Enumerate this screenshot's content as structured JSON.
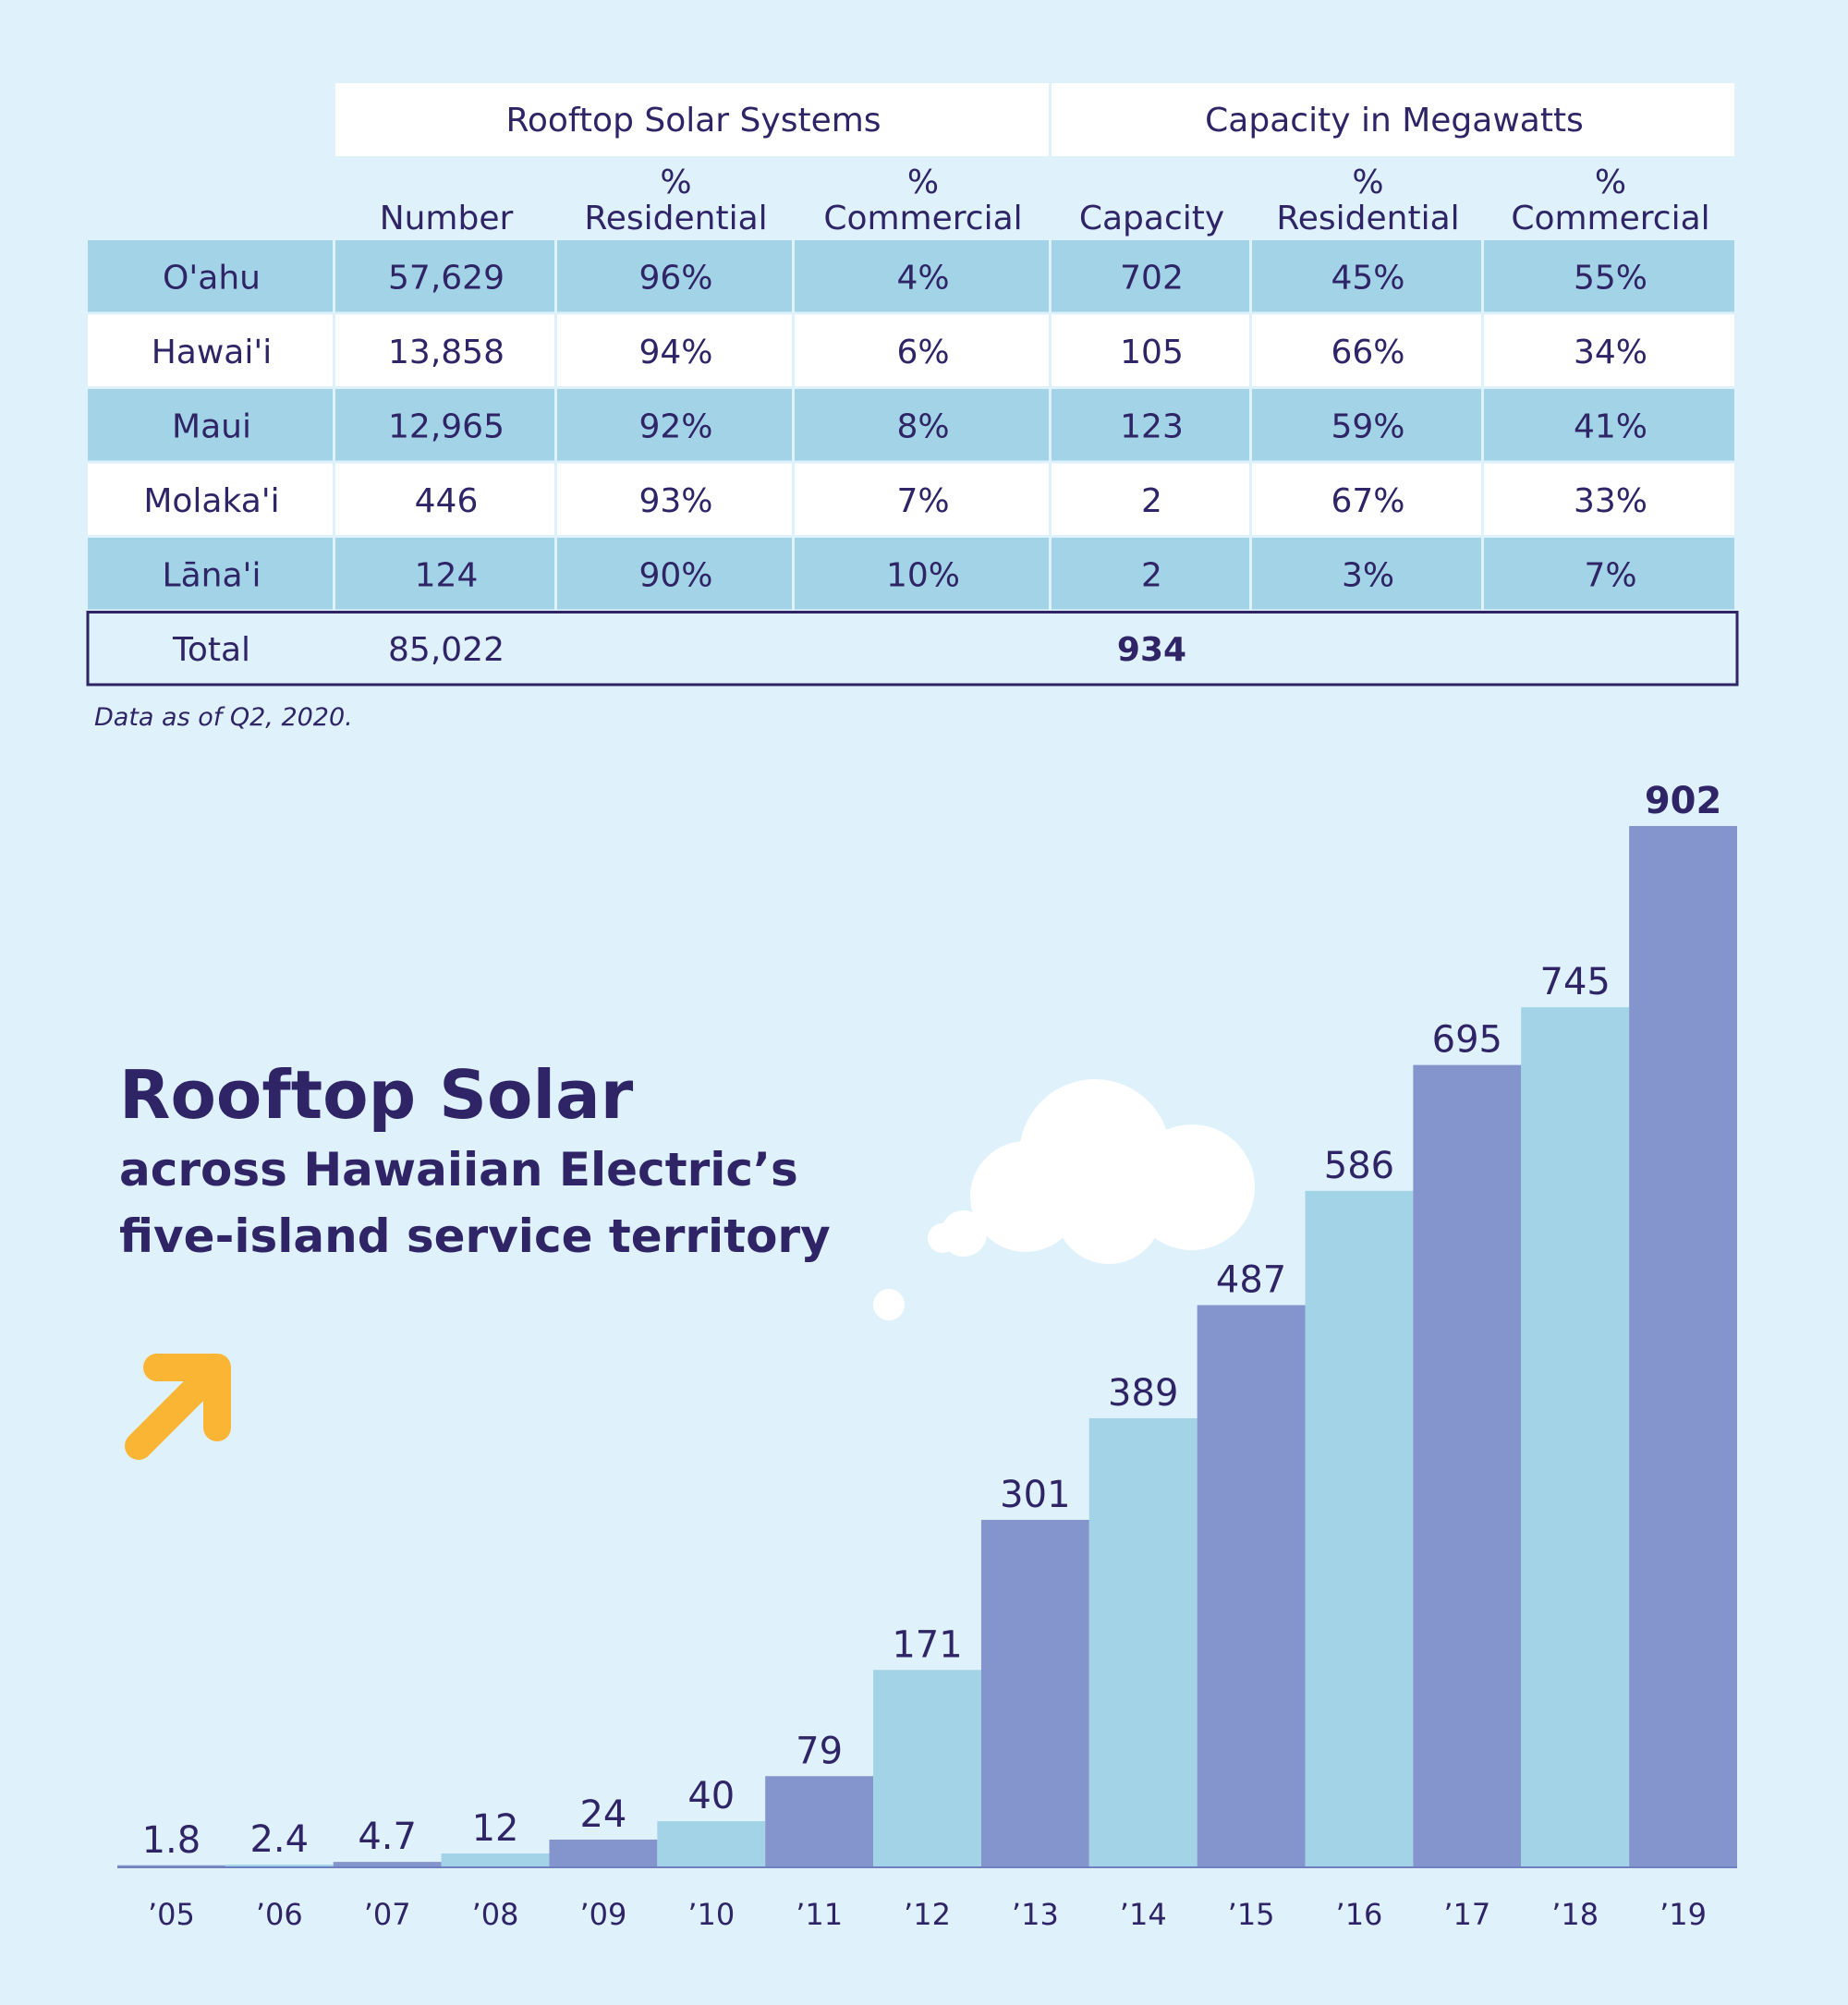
{
  "table": {
    "group_headers": [
      "Rooftop Solar Systems",
      "Capacity in Megawatts"
    ],
    "columns": [
      "Number",
      "%\nResidential",
      "%\nCommercial",
      "Capacity",
      "%\nResidential",
      "%\nCommercial"
    ],
    "rows": [
      [
        "O'ahu",
        "57,629",
        "96%",
        "4%",
        "702",
        "45%",
        "55%"
      ],
      [
        "Hawai'i",
        "13,858",
        "94%",
        "6%",
        "105",
        "66%",
        "34%"
      ],
      [
        "Maui",
        "12,965",
        "92%",
        "8%",
        "123",
        "59%",
        "41%"
      ],
      [
        "Molaka'i",
        "446",
        "93%",
        "7%",
        "2",
        "67%",
        "33%"
      ],
      [
        "Lāna'i",
        "124",
        "90%",
        "10%",
        "2",
        "3%",
        "7%"
      ]
    ],
    "total": {
      "label": "Total",
      "number": "85,022",
      "capacity": "934"
    }
  },
  "note": "Data as of Q2, 2020.",
  "chart_data": {
    "type": "bar",
    "title": "Rooftop Solar",
    "subtitle": "across Hawaiian Electric’s five-island service territory",
    "categories": [
      "’05",
      "’06",
      "’07",
      "’08",
      "’09",
      "’10",
      "’11",
      "’12",
      "’13",
      "’14",
      "’15",
      "’16",
      "’17",
      "’18",
      "’19"
    ],
    "values": [
      1.8,
      2.4,
      4.7,
      12,
      24,
      40,
      79,
      171,
      301,
      389,
      487,
      586,
      695,
      745,
      902
    ],
    "colors": [
      "#8494cc",
      "#a3d3e6",
      "#8494cc",
      "#a3d3e6",
      "#8494cc",
      "#a3d3e6",
      "#8494cc",
      "#a3d3e6",
      "#8494cc",
      "#a3d3e6",
      "#8494cc",
      "#a3d3e6",
      "#8494cc",
      "#a3d3e6",
      "#8494cc"
    ]
  }
}
